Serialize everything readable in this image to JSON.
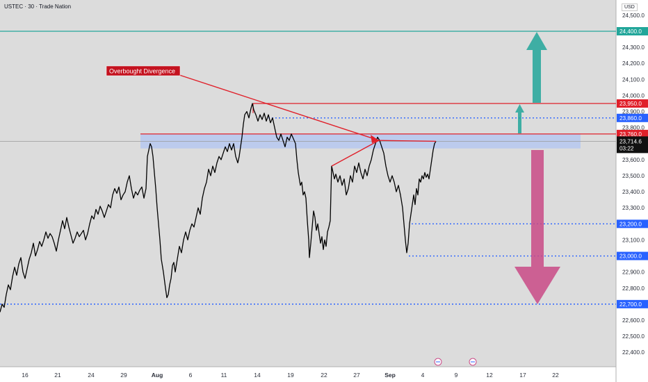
{
  "header": {
    "title": "USTEC · 30 · Trade Nation",
    "currency": "USD"
  },
  "colors": {
    "background": "#dcdcdc",
    "price_line": "#000000",
    "red": "#e0202a",
    "teal": "#22a69a",
    "blue_dotted": "#2962ff",
    "pink": "#c94a86",
    "zone": "#b6c8f0"
  },
  "annotation": {
    "label": "Overbought Divergence"
  },
  "chart_data": {
    "type": "line",
    "title": "USTEC",
    "y_axis": {
      "min": 22350,
      "max": 24560,
      "ticks": [
        24500,
        24400,
        24300,
        24200,
        24100,
        24000,
        23900,
        23800,
        23700,
        23600,
        23500,
        23400,
        23300,
        23200,
        23100,
        23000,
        22900,
        22800,
        22700,
        22600,
        22500,
        22400
      ],
      "tick_labels": [
        "24,500.0",
        "24,400.0",
        "24,300.0",
        "24,200.0",
        "24,100.0",
        "24,000.0",
        "23,900.0",
        "23,800.0",
        "23,700.0",
        "23,600.0",
        "23,500.0",
        "23,400.0",
        "23,300.0",
        "23,200.0",
        "23,100.0",
        "23,000.0",
        "22,900.0",
        "22,800.0",
        "22,700.0",
        "22,600.0",
        "22,500.0",
        "22,400.0"
      ]
    },
    "x_axis": {
      "labels": [
        "16",
        "21",
        "24",
        "29",
        "Aug",
        "6",
        "11",
        "14",
        "19",
        "22",
        "27",
        "Sep",
        "4",
        "9",
        "12",
        "17",
        "22"
      ],
      "bold": [
        "Aug",
        "Sep"
      ],
      "positions": [
        36,
        83,
        131,
        178,
        226,
        274,
        322,
        370,
        418,
        466,
        513,
        561,
        608,
        656,
        704,
        752,
        799
      ]
    },
    "levels": [
      {
        "value": 24400,
        "label": "24,400.0",
        "style": "solid",
        "color": "teal"
      },
      {
        "value": 23950,
        "label": "23,950.0",
        "style": "solid",
        "color": "red"
      },
      {
        "value": 23860,
        "label": "23,860.0",
        "style": "dotted",
        "color": "blue"
      },
      {
        "value": 23760,
        "label": "23,760.0",
        "style": "solid",
        "color": "red"
      },
      {
        "value": 23200,
        "label": "23,200.0",
        "style": "dotted",
        "color": "blue"
      },
      {
        "value": 23000,
        "label": "23,000.0",
        "style": "dotted",
        "color": "blue"
      },
      {
        "value": 22700,
        "label": "22,700.0",
        "style": "dotted",
        "color": "blue"
      }
    ],
    "current_price": {
      "value": 23714.6,
      "label": "23,714.6",
      "countdown": "03:22"
    },
    "resistance_zone": [
      23670,
      23760
    ],
    "series": [
      {
        "values": [
          [
            0,
            22650
          ],
          [
            3,
            22700
          ],
          [
            6,
            22680
          ],
          [
            9,
            22760
          ],
          [
            12,
            22820
          ],
          [
            15,
            22790
          ],
          [
            18,
            22870
          ],
          [
            21,
            22930
          ],
          [
            24,
            22880
          ],
          [
            27,
            22950
          ],
          [
            30,
            22990
          ],
          [
            33,
            22900
          ],
          [
            36,
            22860
          ],
          [
            39,
            22920
          ],
          [
            42,
            22980
          ],
          [
            45,
            23020
          ],
          [
            48,
            23080
          ],
          [
            51,
            23000
          ],
          [
            54,
            23040
          ],
          [
            57,
            23090
          ],
          [
            60,
            23060
          ],
          [
            63,
            23100
          ],
          [
            66,
            23150
          ],
          [
            69,
            23110
          ],
          [
            72,
            23140
          ],
          [
            75,
            23120
          ],
          [
            78,
            23080
          ],
          [
            81,
            23030
          ],
          [
            84,
            23100
          ],
          [
            87,
            23160
          ],
          [
            90,
            23220
          ],
          [
            93,
            23170
          ],
          [
            96,
            23240
          ],
          [
            99,
            23180
          ],
          [
            102,
            23130
          ],
          [
            105,
            23080
          ],
          [
            108,
            23110
          ],
          [
            111,
            23150
          ],
          [
            114,
            23120
          ],
          [
            117,
            23140
          ],
          [
            120,
            23160
          ],
          [
            123,
            23100
          ],
          [
            126,
            23140
          ],
          [
            129,
            23200
          ],
          [
            132,
            23250
          ],
          [
            135,
            23230
          ],
          [
            138,
            23290
          ],
          [
            141,
            23260
          ],
          [
            144,
            23310
          ],
          [
            147,
            23280
          ],
          [
            150,
            23240
          ],
          [
            153,
            23280
          ],
          [
            156,
            23320
          ],
          [
            159,
            23300
          ],
          [
            162,
            23380
          ],
          [
            165,
            23420
          ],
          [
            168,
            23390
          ],
          [
            171,
            23430
          ],
          [
            174,
            23350
          ],
          [
            177,
            23380
          ],
          [
            180,
            23400
          ],
          [
            183,
            23460
          ],
          [
            186,
            23500
          ],
          [
            189,
            23420
          ],
          [
            192,
            23360
          ],
          [
            195,
            23400
          ],
          [
            198,
            23380
          ],
          [
            201,
            23410
          ],
          [
            204,
            23430
          ],
          [
            207,
            23360
          ],
          [
            210,
            23420
          ],
          [
            212,
            23620
          ],
          [
            214,
            23660
          ],
          [
            216,
            23700
          ],
          [
            218,
            23680
          ],
          [
            220,
            23620
          ],
          [
            222,
            23520
          ],
          [
            224,
            23420
          ],
          [
            226,
            23300
          ],
          [
            228,
            23200
          ],
          [
            230,
            23100
          ],
          [
            232,
            22980
          ],
          [
            235,
            22900
          ],
          [
            238,
            22800
          ],
          [
            240,
            22740
          ],
          [
            242,
            22760
          ],
          [
            244,
            22820
          ],
          [
            246,
            22860
          ],
          [
            248,
            22940
          ],
          [
            250,
            22960
          ],
          [
            252,
            22900
          ],
          [
            255,
            22980
          ],
          [
            258,
            23060
          ],
          [
            261,
            23020
          ],
          [
            264,
            23100
          ],
          [
            267,
            23150
          ],
          [
            270,
            23100
          ],
          [
            273,
            23160
          ],
          [
            276,
            23200
          ],
          [
            279,
            23180
          ],
          [
            282,
            23240
          ],
          [
            285,
            23300
          ],
          [
            288,
            23260
          ],
          [
            291,
            23360
          ],
          [
            294,
            23420
          ],
          [
            297,
            23460
          ],
          [
            300,
            23540
          ],
          [
            303,
            23500
          ],
          [
            306,
            23560
          ],
          [
            309,
            23520
          ],
          [
            312,
            23580
          ],
          [
            315,
            23620
          ],
          [
            318,
            23600
          ],
          [
            321,
            23640
          ],
          [
            324,
            23680
          ],
          [
            327,
            23650
          ],
          [
            330,
            23700
          ],
          [
            333,
            23660
          ],
          [
            336,
            23700
          ],
          [
            339,
            23620
          ],
          [
            342,
            23580
          ],
          [
            344,
            23620
          ],
          [
            346,
            23680
          ],
          [
            348,
            23740
          ],
          [
            350,
            23820
          ],
          [
            352,
            23880
          ],
          [
            355,
            23900
          ],
          [
            358,
            23860
          ],
          [
            361,
            23920
          ],
          [
            363,
            23950
          ],
          [
            365,
            23910
          ],
          [
            368,
            23880
          ],
          [
            371,
            23840
          ],
          [
            374,
            23880
          ],
          [
            377,
            23850
          ],
          [
            380,
            23890
          ],
          [
            383,
            23840
          ],
          [
            386,
            23880
          ],
          [
            389,
            23830
          ],
          [
            392,
            23860
          ],
          [
            395,
            23800
          ],
          [
            398,
            23740
          ],
          [
            401,
            23720
          ],
          [
            404,
            23760
          ],
          [
            407,
            23720
          ],
          [
            410,
            23680
          ],
          [
            413,
            23740
          ],
          [
            416,
            23720
          ],
          [
            419,
            23760
          ],
          [
            422,
            23730
          ],
          [
            425,
            23700
          ],
          [
            427,
            23600
          ],
          [
            429,
            23520
          ],
          [
            432,
            23440
          ],
          [
            434,
            23460
          ],
          [
            436,
            23380
          ],
          [
            438,
            23400
          ],
          [
            440,
            23360
          ],
          [
            442,
            23220
          ],
          [
            444,
            23100
          ],
          [
            445,
            22990
          ],
          [
            447,
            23080
          ],
          [
            449,
            23180
          ],
          [
            451,
            23280
          ],
          [
            453,
            23240
          ],
          [
            455,
            23160
          ],
          [
            457,
            23200
          ],
          [
            459,
            23140
          ],
          [
            461,
            23080
          ],
          [
            463,
            23120
          ],
          [
            465,
            23040
          ],
          [
            467,
            23100
          ],
          [
            469,
            23060
          ],
          [
            471,
            23150
          ],
          [
            473,
            23180
          ],
          [
            475,
            23220
          ],
          [
            476,
            23400
          ],
          [
            477,
            23560
          ],
          [
            479,
            23520
          ],
          [
            481,
            23480
          ],
          [
            483,
            23510
          ],
          [
            486,
            23460
          ],
          [
            489,
            23500
          ],
          [
            492,
            23440
          ],
          [
            495,
            23480
          ],
          [
            498,
            23380
          ],
          [
            501,
            23420
          ],
          [
            504,
            23500
          ],
          [
            507,
            23460
          ],
          [
            510,
            23560
          ],
          [
            513,
            23520
          ],
          [
            516,
            23580
          ],
          [
            519,
            23520
          ],
          [
            522,
            23480
          ],
          [
            525,
            23540
          ],
          [
            528,
            23500
          ],
          [
            531,
            23560
          ],
          [
            534,
            23600
          ],
          [
            537,
            23660
          ],
          [
            540,
            23700
          ],
          [
            543,
            23740
          ],
          [
            546,
            23720
          ],
          [
            549,
            23680
          ],
          [
            552,
            23640
          ],
          [
            555,
            23560
          ],
          [
            558,
            23500
          ],
          [
            561,
            23460
          ],
          [
            564,
            23500
          ],
          [
            567,
            23460
          ],
          [
            570,
            23400
          ],
          [
            573,
            23440
          ],
          [
            576,
            23380
          ],
          [
            579,
            23300
          ],
          [
            581,
            23200
          ],
          [
            583,
            23100
          ],
          [
            585,
            23020
          ],
          [
            587,
            23080
          ],
          [
            589,
            23200
          ],
          [
            591,
            23260
          ],
          [
            593,
            23320
          ],
          [
            595,
            23380
          ],
          [
            597,
            23320
          ],
          [
            599,
            23420
          ],
          [
            601,
            23380
          ],
          [
            603,
            23480
          ],
          [
            605,
            23460
          ],
          [
            607,
            23500
          ],
          [
            609,
            23480
          ],
          [
            611,
            23520
          ],
          [
            613,
            23490
          ],
          [
            615,
            23510
          ],
          [
            617,
            23480
          ],
          [
            619,
            23540
          ],
          [
            621,
            23600
          ],
          [
            623,
            23660
          ],
          [
            625,
            23700
          ],
          [
            627,
            23714.6
          ]
        ]
      }
    ]
  }
}
